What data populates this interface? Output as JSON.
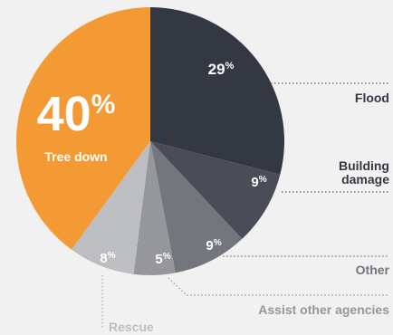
{
  "chart_data": {
    "type": "pie",
    "slices": [
      {
        "label": "Flood",
        "value": 29,
        "value_text": "29",
        "color": "#343842",
        "text_color": "#343842"
      },
      {
        "label": "Building damage",
        "value": 9,
        "value_text": "9",
        "color": "#4a4d57",
        "text_color": "#343842"
      },
      {
        "label": "Other",
        "value": 9,
        "value_text": "9",
        "color": "#74767d",
        "text_color": "#74767d"
      },
      {
        "label": "Assist other agencies",
        "value": 5,
        "value_text": "5",
        "color": "#96979b",
        "text_color": "#96979b"
      },
      {
        "label": "Rescue",
        "value": 8,
        "value_text": "8",
        "color": "#bdbec2",
        "text_color": "#bdbec2"
      },
      {
        "label": "Tree down",
        "value": 40,
        "value_text": "40",
        "color": "#f49a34",
        "text_color": "#ffffff"
      }
    ],
    "percent_symbol": "%",
    "building_damage_lines": [
      "Building",
      "damage"
    ]
  }
}
